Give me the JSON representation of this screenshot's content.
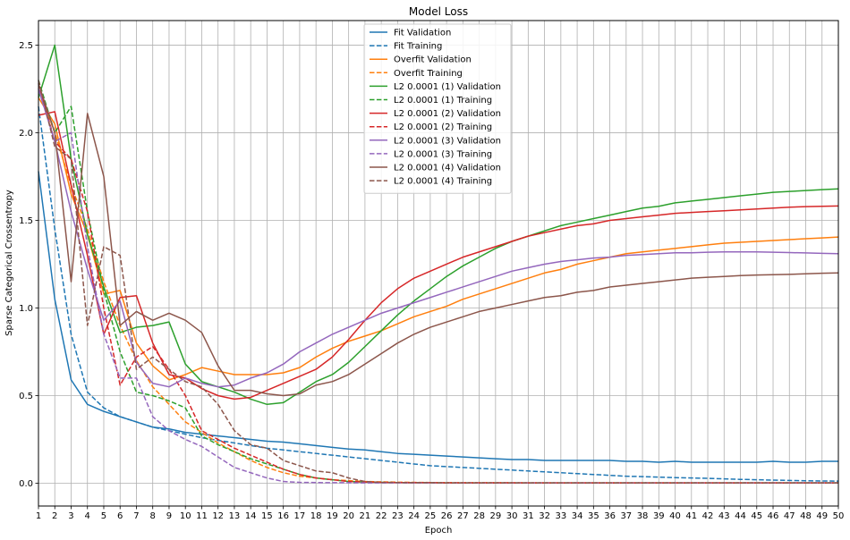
{
  "chart_data": {
    "type": "line",
    "title": "Model Loss",
    "xlabel": "Epoch",
    "ylabel": "Sparse Categorical Crossentropy",
    "xlim": [
      1,
      50
    ],
    "ylim": [
      -0.13,
      2.64
    ],
    "xticks": [
      1,
      2,
      3,
      4,
      5,
      6,
      7,
      8,
      9,
      10,
      11,
      12,
      13,
      14,
      15,
      16,
      17,
      18,
      19,
      20,
      21,
      22,
      23,
      24,
      25,
      26,
      27,
      28,
      29,
      30,
      31,
      32,
      33,
      34,
      35,
      36,
      37,
      38,
      39,
      40,
      41,
      42,
      43,
      44,
      45,
      46,
      47,
      48,
      49,
      50
    ],
    "yticks": [
      0.0,
      0.5,
      1.0,
      1.5,
      2.0,
      2.5
    ],
    "ytick_labels": [
      "0.0",
      "0.5",
      "1.0",
      "1.5",
      "2.0",
      "2.5"
    ],
    "grid": true,
    "legend_position": "top-center",
    "series": [
      {
        "name": "Fit Validation",
        "color": "#1f77b4",
        "dash": "solid",
        "values": [
          1.78,
          1.05,
          0.59,
          0.45,
          0.41,
          0.38,
          0.35,
          0.32,
          0.31,
          0.29,
          0.28,
          0.27,
          0.26,
          0.25,
          0.24,
          0.235,
          0.225,
          0.215,
          0.205,
          0.195,
          0.19,
          0.18,
          0.17,
          0.165,
          0.16,
          0.155,
          0.15,
          0.145,
          0.14,
          0.135,
          0.135,
          0.13,
          0.13,
          0.13,
          0.13,
          0.13,
          0.125,
          0.125,
          0.12,
          0.125,
          0.12,
          0.12,
          0.12,
          0.12,
          0.12,
          0.125,
          0.12,
          0.12,
          0.125,
          0.125
        ]
      },
      {
        "name": "Fit Training",
        "color": "#1f77b4",
        "dash": "dashed",
        "values": [
          2.15,
          1.45,
          0.85,
          0.52,
          0.43,
          0.38,
          0.35,
          0.32,
          0.3,
          0.28,
          0.26,
          0.245,
          0.23,
          0.215,
          0.2,
          0.19,
          0.18,
          0.17,
          0.16,
          0.15,
          0.14,
          0.13,
          0.12,
          0.11,
          0.1,
          0.095,
          0.09,
          0.085,
          0.08,
          0.075,
          0.07,
          0.065,
          0.06,
          0.055,
          0.05,
          0.045,
          0.04,
          0.038,
          0.035,
          0.032,
          0.03,
          0.028,
          0.025,
          0.022,
          0.02,
          0.018,
          0.016,
          0.014,
          0.013,
          0.012
        ]
      },
      {
        "name": "Overfit Validation",
        "color": "#ff7f0e",
        "dash": "solid",
        "values": [
          2.2,
          2.05,
          1.65,
          1.42,
          1.08,
          1.1,
          0.8,
          0.67,
          0.59,
          0.62,
          0.66,
          0.64,
          0.62,
          0.62,
          0.62,
          0.63,
          0.66,
          0.72,
          0.77,
          0.81,
          0.84,
          0.87,
          0.91,
          0.95,
          0.98,
          1.01,
          1.05,
          1.08,
          1.11,
          1.14,
          1.17,
          1.2,
          1.22,
          1.25,
          1.27,
          1.29,
          1.31,
          1.32,
          1.33,
          1.34,
          1.35,
          1.36,
          1.37,
          1.375,
          1.38,
          1.385,
          1.39,
          1.395,
          1.4,
          1.405
        ]
      },
      {
        "name": "Overfit Training",
        "color": "#ff7f0e",
        "dash": "dashed",
        "values": [
          2.25,
          2.0,
          1.7,
          1.45,
          1.15,
          0.9,
          0.7,
          0.55,
          0.45,
          0.35,
          0.29,
          0.23,
          0.18,
          0.13,
          0.09,
          0.06,
          0.04,
          0.03,
          0.02,
          0.015,
          0.01,
          0.008,
          0.006,
          0.005,
          0.004,
          0.004,
          0.003,
          0.003,
          0.003,
          0.003,
          0.002,
          0.002,
          0.002,
          0.002,
          0.002,
          0.002,
          0.002,
          0.002,
          0.002,
          0.002,
          0.002,
          0.002,
          0.002,
          0.002,
          0.002,
          0.002,
          0.002,
          0.002,
          0.002,
          0.002
        ]
      },
      {
        "name": "L2 0.0001 (1) Validation",
        "color": "#2ca02c",
        "dash": "solid",
        "values": [
          2.2,
          2.5,
          1.85,
          1.42,
          1.12,
          0.86,
          0.89,
          0.9,
          0.92,
          0.68,
          0.58,
          0.55,
          0.52,
          0.48,
          0.45,
          0.46,
          0.52,
          0.58,
          0.62,
          0.69,
          0.78,
          0.87,
          0.96,
          1.04,
          1.11,
          1.18,
          1.24,
          1.29,
          1.34,
          1.38,
          1.41,
          1.44,
          1.47,
          1.49,
          1.51,
          1.53,
          1.55,
          1.57,
          1.58,
          1.6,
          1.61,
          1.62,
          1.63,
          1.64,
          1.65,
          1.66,
          1.665,
          1.67,
          1.675,
          1.68
        ]
      },
      {
        "name": "L2 0.0001 (1) Training",
        "color": "#2ca02c",
        "dash": "dashed",
        "values": [
          2.3,
          2.0,
          2.15,
          1.55,
          1.1,
          0.75,
          0.52,
          0.5,
          0.47,
          0.43,
          0.27,
          0.22,
          0.18,
          0.14,
          0.11,
          0.08,
          0.05,
          0.03,
          0.02,
          0.01,
          0.007,
          0.005,
          0.004,
          0.003,
          0.003,
          0.002,
          0.002,
          0.002,
          0.002,
          0.002,
          0.002,
          0.002,
          0.002,
          0.002,
          0.002,
          0.002,
          0.002,
          0.002,
          0.002,
          0.002,
          0.002,
          0.002,
          0.002,
          0.002,
          0.002,
          0.002,
          0.002,
          0.002,
          0.002,
          0.002
        ]
      },
      {
        "name": "L2 0.0001 (2) Validation",
        "color": "#d62728",
        "dash": "solid",
        "values": [
          2.1,
          2.12,
          1.7,
          1.3,
          0.85,
          1.06,
          1.07,
          0.8,
          0.62,
          0.6,
          0.54,
          0.5,
          0.48,
          0.49,
          0.53,
          0.57,
          0.61,
          0.65,
          0.72,
          0.82,
          0.93,
          1.03,
          1.11,
          1.17,
          1.21,
          1.25,
          1.29,
          1.32,
          1.35,
          1.38,
          1.41,
          1.43,
          1.45,
          1.47,
          1.48,
          1.5,
          1.51,
          1.52,
          1.53,
          1.54,
          1.545,
          1.55,
          1.555,
          1.56,
          1.565,
          1.57,
          1.575,
          1.578,
          1.58,
          1.582
        ]
      },
      {
        "name": "L2 0.0001 (2) Training",
        "color": "#d62728",
        "dash": "dashed",
        "values": [
          2.28,
          1.95,
          1.85,
          1.55,
          1.0,
          0.56,
          0.72,
          0.78,
          0.65,
          0.5,
          0.3,
          0.25,
          0.2,
          0.16,
          0.12,
          0.08,
          0.05,
          0.03,
          0.02,
          0.01,
          0.007,
          0.005,
          0.004,
          0.003,
          0.003,
          0.002,
          0.002,
          0.002,
          0.002,
          0.002,
          0.002,
          0.002,
          0.002,
          0.002,
          0.002,
          0.002,
          0.002,
          0.002,
          0.002,
          0.002,
          0.002,
          0.002,
          0.002,
          0.002,
          0.002,
          0.002,
          0.002,
          0.002,
          0.002,
          0.002
        ]
      },
      {
        "name": "L2 0.0001 (3) Validation",
        "color": "#9467bd",
        "dash": "solid",
        "values": [
          2.25,
          1.95,
          1.55,
          1.22,
          0.93,
          1.04,
          0.69,
          0.57,
          0.55,
          0.6,
          0.57,
          0.55,
          0.56,
          0.6,
          0.63,
          0.68,
          0.75,
          0.8,
          0.85,
          0.89,
          0.93,
          0.97,
          1.0,
          1.03,
          1.06,
          1.09,
          1.12,
          1.15,
          1.18,
          1.21,
          1.23,
          1.25,
          1.265,
          1.275,
          1.285,
          1.29,
          1.3,
          1.305,
          1.31,
          1.315,
          1.315,
          1.318,
          1.32,
          1.32,
          1.32,
          1.318,
          1.316,
          1.314,
          1.312,
          1.31
        ]
      },
      {
        "name": "L2 0.0001 (3) Training",
        "color": "#9467bd",
        "dash": "dashed",
        "values": [
          2.25,
          1.95,
          2.0,
          1.35,
          0.85,
          0.6,
          0.6,
          0.38,
          0.3,
          0.25,
          0.21,
          0.15,
          0.09,
          0.06,
          0.03,
          0.01,
          0.005,
          0.004,
          0.003,
          0.003,
          0.002,
          0.002,
          0.002,
          0.002,
          0.002,
          0.002,
          0.002,
          0.002,
          0.002,
          0.002,
          0.002,
          0.002,
          0.002,
          0.002,
          0.002,
          0.002,
          0.002,
          0.002,
          0.002,
          0.002,
          0.002,
          0.002,
          0.002,
          0.002,
          0.002,
          0.002,
          0.002,
          0.002,
          0.002,
          0.002
        ]
      },
      {
        "name": "L2 0.0001 (4) Validation",
        "color": "#8c564b",
        "dash": "solid",
        "values": [
          2.28,
          2.0,
          1.15,
          2.11,
          1.75,
          0.9,
          0.98,
          0.93,
          0.97,
          0.93,
          0.86,
          0.67,
          0.53,
          0.53,
          0.51,
          0.5,
          0.51,
          0.56,
          0.58,
          0.62,
          0.68,
          0.74,
          0.8,
          0.85,
          0.89,
          0.92,
          0.95,
          0.98,
          1.0,
          1.02,
          1.04,
          1.06,
          1.07,
          1.09,
          1.1,
          1.12,
          1.13,
          1.14,
          1.15,
          1.16,
          1.17,
          1.175,
          1.18,
          1.185,
          1.188,
          1.19,
          1.192,
          1.195,
          1.198,
          1.2
        ]
      },
      {
        "name": "L2 0.0001 (4) Training",
        "color": "#8c564b",
        "dash": "dashed",
        "values": [
          2.3,
          1.92,
          1.85,
          0.9,
          1.35,
          1.3,
          0.65,
          0.72,
          0.65,
          0.58,
          0.55,
          0.45,
          0.3,
          0.22,
          0.2,
          0.13,
          0.1,
          0.07,
          0.06,
          0.03,
          0.01,
          0.005,
          0.004,
          0.003,
          0.003,
          0.002,
          0.002,
          0.002,
          0.002,
          0.002,
          0.002,
          0.002,
          0.002,
          0.002,
          0.002,
          0.002,
          0.002,
          0.002,
          0.002,
          0.002,
          0.002,
          0.002,
          0.002,
          0.002,
          0.002,
          0.002,
          0.002,
          0.002,
          0.002,
          0.002
        ]
      }
    ]
  }
}
